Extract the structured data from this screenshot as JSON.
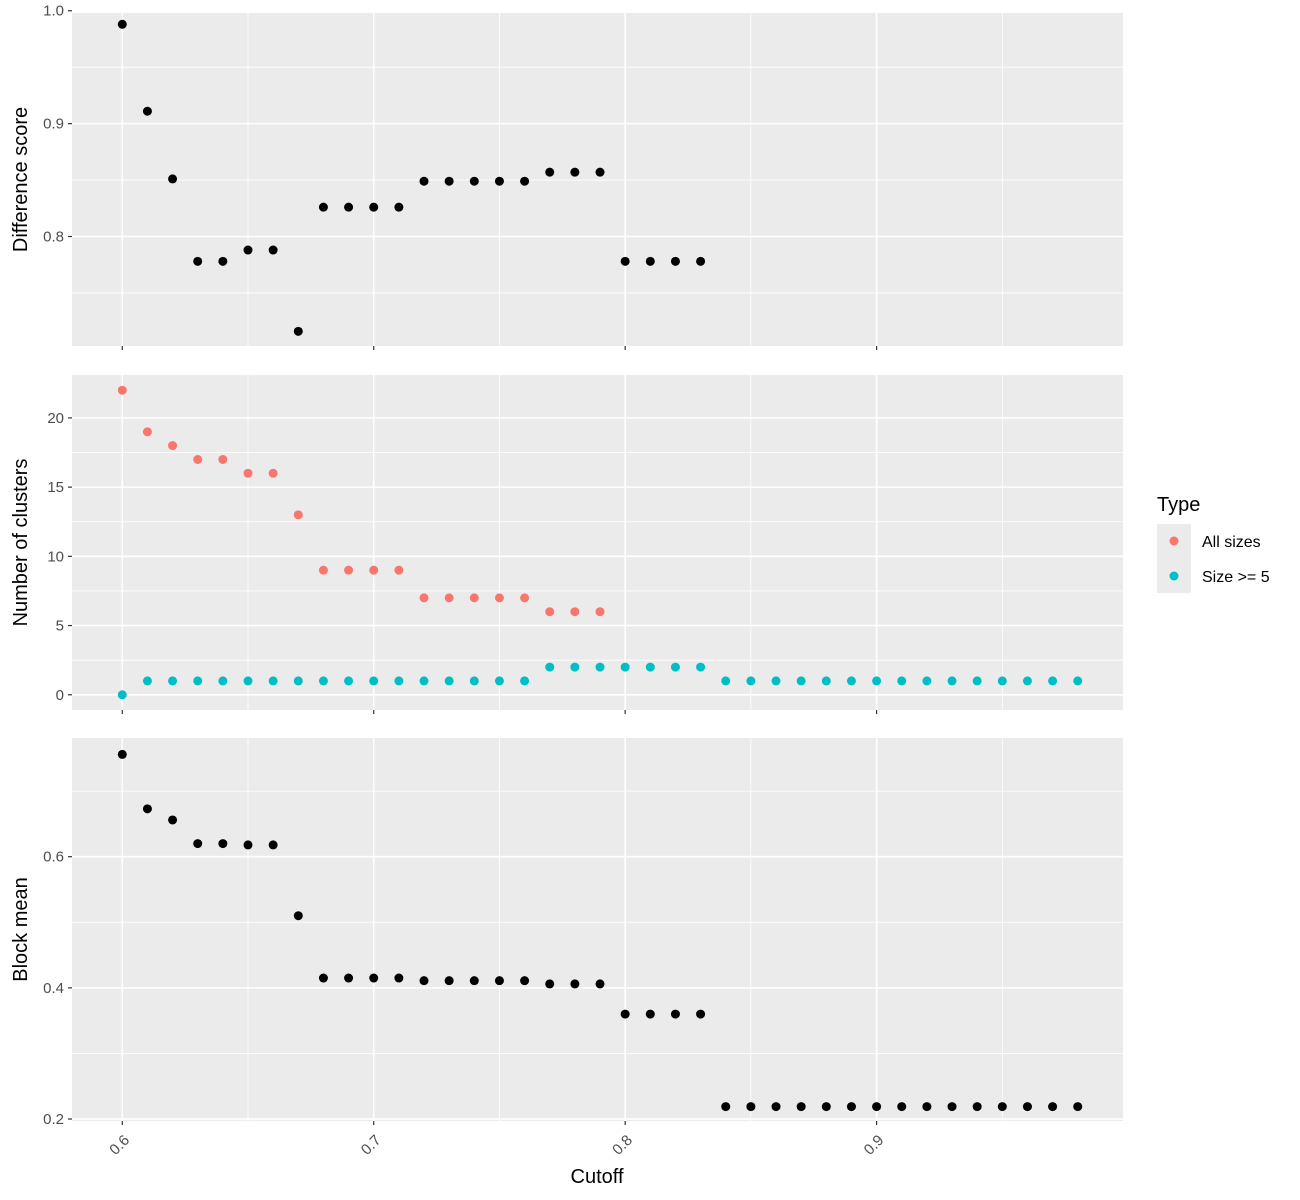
{
  "chart_data": {
    "type": "scatter",
    "shared_x": {
      "label": "Cutoff",
      "range": [
        0.58,
        0.998
      ],
      "ticks": [
        0.6,
        0.7,
        0.8,
        0.9
      ],
      "tick_labels": [
        "0.6",
        "0.7",
        "0.8",
        "0.9"
      ]
    },
    "legend": {
      "title": "Type",
      "position": "right",
      "entries": [
        {
          "label": "All sizes",
          "color": "#F8766D"
        },
        {
          "label": "Size >= 5",
          "color": "#00BFC4"
        }
      ]
    },
    "panels": [
      {
        "ylabel": "Difference score",
        "ylim": [
          0.703,
          0.998
        ],
        "y_ticks": [
          0.8,
          0.9,
          1.0
        ],
        "y_tick_labels": [
          "0.8",
          "0.9",
          "1.0"
        ],
        "y_minor": [
          0.75,
          0.85,
          0.95
        ],
        "series": [
          {
            "color": "#000000",
            "x": [
              0.6,
              0.61,
              0.62,
              0.63,
              0.64,
              0.65,
              0.66,
              0.67,
              0.68,
              0.69,
              0.7,
              0.71,
              0.72,
              0.73,
              0.74,
              0.75,
              0.76,
              0.77,
              0.78,
              0.79,
              0.8,
              0.81,
              0.82,
              0.83
            ],
            "y": [
              0.988,
              0.911,
              0.851,
              0.778,
              0.778,
              0.788,
              0.788,
              0.716,
              0.826,
              0.826,
              0.826,
              0.826,
              0.849,
              0.849,
              0.849,
              0.849,
              0.849,
              0.857,
              0.857,
              0.857,
              0.778,
              0.778,
              0.778,
              0.778
            ]
          }
        ]
      },
      {
        "ylabel": "Number of clusters",
        "ylim": [
          -1.1,
          23.1
        ],
        "y_ticks": [
          0,
          5,
          10,
          15,
          20
        ],
        "y_tick_labels": [
          "0",
          "5",
          "10",
          "15",
          "20"
        ],
        "y_minor": [
          2.5,
          7.5,
          12.5,
          17.5
        ],
        "series": [
          {
            "name": "All sizes",
            "color": "#F8766D",
            "x": [
              0.6,
              0.61,
              0.62,
              0.63,
              0.64,
              0.65,
              0.66,
              0.67,
              0.68,
              0.69,
              0.7,
              0.71,
              0.72,
              0.73,
              0.74,
              0.75,
              0.76,
              0.77,
              0.78,
              0.79
            ],
            "y": [
              22,
              19,
              18,
              17,
              17,
              16,
              16,
              13,
              9,
              9,
              9,
              9,
              7,
              7,
              7,
              7,
              7,
              6,
              6,
              6
            ]
          },
          {
            "name": "Size >= 5",
            "color": "#00BFC4",
            "x": [
              0.6,
              0.61,
              0.62,
              0.63,
              0.64,
              0.65,
              0.66,
              0.67,
              0.68,
              0.69,
              0.7,
              0.71,
              0.72,
              0.73,
              0.74,
              0.75,
              0.76,
              0.77,
              0.78,
              0.79,
              0.8,
              0.81,
              0.82,
              0.83,
              0.84,
              0.85,
              0.86,
              0.87,
              0.88,
              0.89,
              0.9,
              0.91,
              0.92,
              0.93,
              0.94,
              0.95,
              0.96,
              0.97,
              0.98
            ],
            "y": [
              0,
              1,
              1,
              1,
              1,
              1,
              1,
              1,
              1,
              1,
              1,
              1,
              1,
              1,
              1,
              1,
              1,
              2,
              2,
              2,
              2,
              2,
              2,
              2,
              1,
              1,
              1,
              1,
              1,
              1,
              1,
              1,
              1,
              1,
              1,
              1,
              1,
              1,
              1
            ]
          }
        ]
      },
      {
        "ylabel": "Block mean",
        "ylim": [
          0.197,
          0.781
        ],
        "y_ticks": [
          0.2,
          0.4,
          0.6
        ],
        "y_tick_labels": [
          "0.2",
          "0.4",
          "0.6"
        ],
        "y_minor": [
          0.3,
          0.5,
          0.7
        ],
        "series": [
          {
            "color": "#000000",
            "x": [
              0.6,
              0.61,
              0.62,
              0.63,
              0.64,
              0.65,
              0.66,
              0.67,
              0.68,
              0.69,
              0.7,
              0.71,
              0.72,
              0.73,
              0.74,
              0.75,
              0.76,
              0.77,
              0.78,
              0.79,
              0.8,
              0.81,
              0.82,
              0.83,
              0.84,
              0.85,
              0.86,
              0.87,
              0.88,
              0.89,
              0.9,
              0.91,
              0.92,
              0.93,
              0.94,
              0.95,
              0.96,
              0.97,
              0.98
            ],
            "y": [
              0.756,
              0.673,
              0.656,
              0.62,
              0.62,
              0.618,
              0.618,
              0.51,
              0.415,
              0.415,
              0.415,
              0.415,
              0.411,
              0.411,
              0.411,
              0.411,
              0.411,
              0.406,
              0.406,
              0.406,
              0.36,
              0.36,
              0.36,
              0.36,
              0.219,
              0.219,
              0.219,
              0.219,
              0.219,
              0.219,
              0.219,
              0.219,
              0.219,
              0.219,
              0.219,
              0.219,
              0.219,
              0.219,
              0.219
            ]
          }
        ]
      }
    ]
  }
}
